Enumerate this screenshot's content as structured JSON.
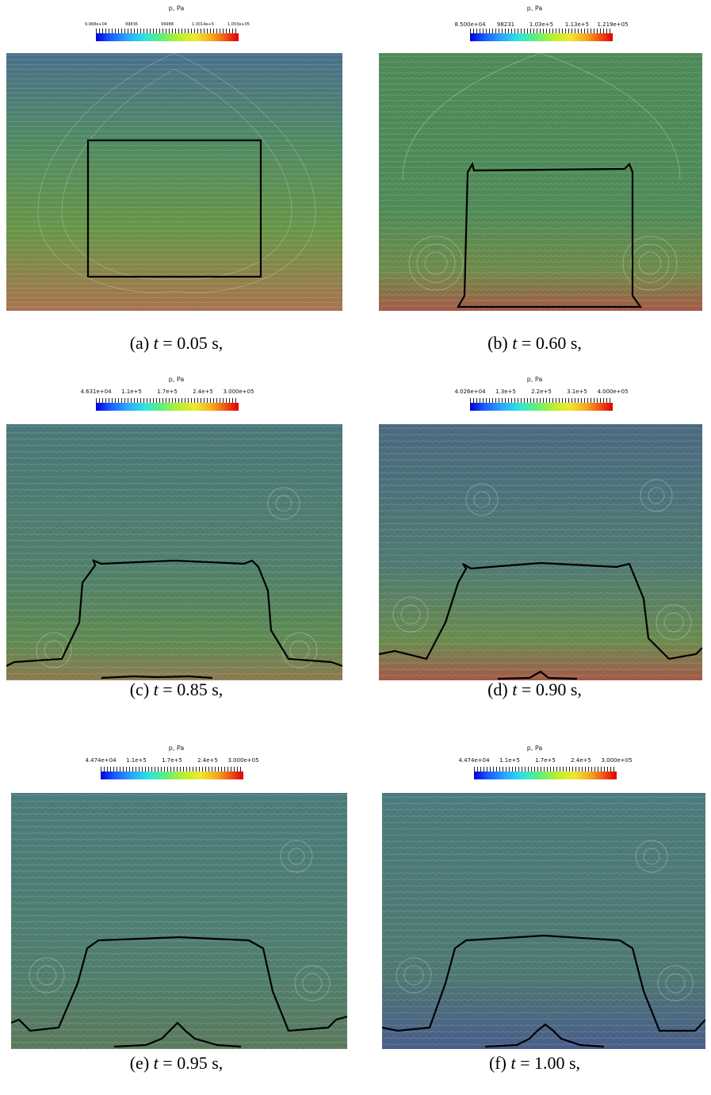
{
  "colorbar_title": "p, Pa",
  "panels": [
    {
      "id": "a",
      "caption_label": "(a)",
      "time_value": "0.05",
      "unit": "s,",
      "ticks": [
        "9.968e+04",
        "99836",
        "99988",
        "1.0014e+5",
        "1.003e+05"
      ]
    },
    {
      "id": "b",
      "caption_label": "(b)",
      "time_value": "0.60",
      "unit": "s,",
      "ticks": [
        "8.500e+04",
        "98231",
        "1.03e+5",
        "1.13e+5",
        "1.219e+05"
      ]
    },
    {
      "id": "c",
      "caption_label": "(c)",
      "time_value": "0.85",
      "unit": "s,",
      "ticks": [
        "4.631e+04",
        "1.1e+5",
        "1.7e+5",
        "2.4e+5",
        "3.000e+05"
      ]
    },
    {
      "id": "d",
      "caption_label": "(d)",
      "time_value": "0.90",
      "unit": "s,",
      "ticks": [
        "4.026e+04",
        "1.3e+5",
        "2.2e+5",
        "3.1e+5",
        "4.000e+05"
      ]
    },
    {
      "id": "e",
      "caption_label": "(e)",
      "time_value": "0.95",
      "unit": "s,",
      "ticks": [
        "4.474e+04",
        "1.1e+5",
        "1.7e+5",
        "2.4e+5",
        "3.000e+05"
      ]
    },
    {
      "id": "f",
      "caption_label": "(f)",
      "time_value": "1.00",
      "unit": "s,",
      "ticks": [
        "4.474e+04",
        "1.1e+5",
        "1.7e+5",
        "2.4e+5",
        "3.000e+05"
      ]
    }
  ],
  "colors": {
    "flow_green": "#4f8a56",
    "flow_teal": "#4b7a7a",
    "high_pressure": "#b8574a",
    "interface_line": "#000000"
  }
}
